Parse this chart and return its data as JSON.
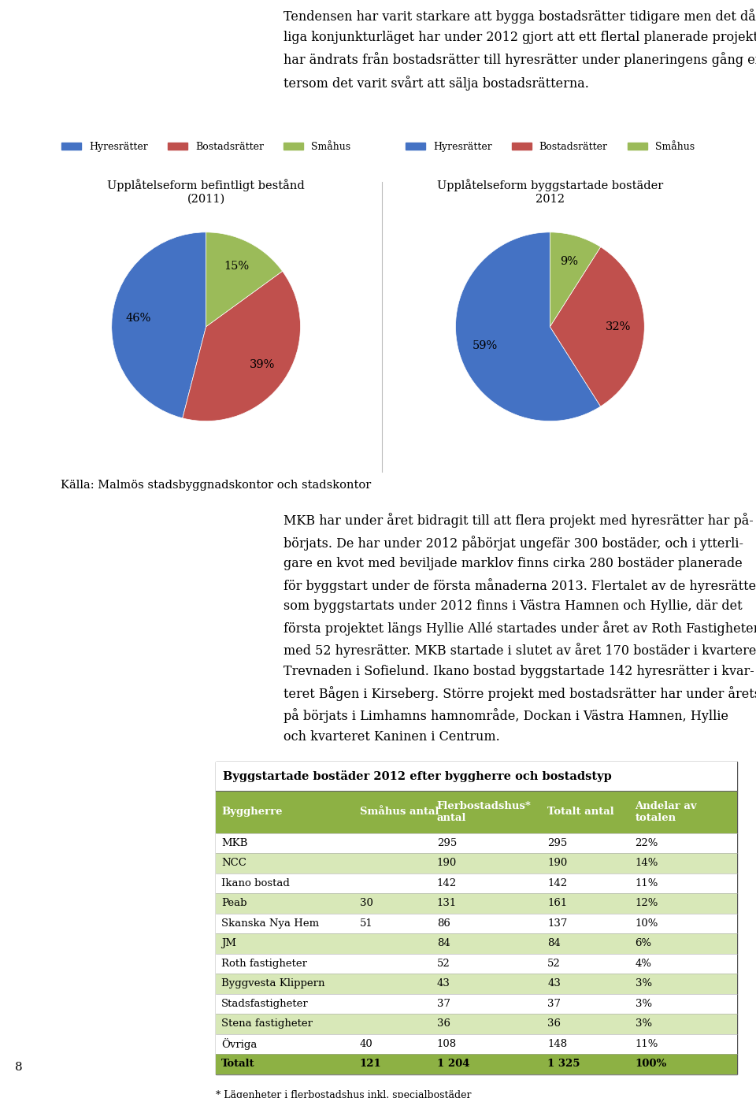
{
  "pie1_title": "Upplåtelseform befintligt bestånd\n(2011)",
  "pie1_values": [
    46,
    39,
    15
  ],
  "pie1_colors": [
    "#4472C4",
    "#C0504D",
    "#9BBB59"
  ],
  "pie1_legend": [
    "Hyresrätter",
    "Bostadsrätter",
    "Småhus"
  ],
  "pie2_title": "Upplåtelseform byggstartade bostäder\n2012",
  "pie2_values": [
    59,
    32,
    9
  ],
  "pie2_colors": [
    "#4472C4",
    "#C0504D",
    "#9BBB59"
  ],
  "pie2_legend": [
    "Hyresrätter",
    "Bostadsrätter",
    "Småhus"
  ],
  "source_text": "Källa: Malmös stadsbyggnadskontor och stadskontor",
  "table_title": "Byggstartade bostäder 2012 efter byggherre och bostadstyp",
  "table_header": [
    "Byggherre",
    "Småhus antal",
    "Flerbostadshus*\nantal",
    "Totalt antal",
    "Andelar av\ntotalen"
  ],
  "table_header_bg": "#8DB144",
  "table_alt_bg": "#D8E8B8",
  "table_rows": [
    [
      "MKB",
      "",
      "295",
      "295",
      "22%"
    ],
    [
      "NCC",
      "",
      "190",
      "190",
      "14%"
    ],
    [
      "Ikano bostad",
      "",
      "142",
      "142",
      "11%"
    ],
    [
      "Peab",
      "30",
      "131",
      "161",
      "12%"
    ],
    [
      "Skanska Nya Hem",
      "51",
      "86",
      "137",
      "10%"
    ],
    [
      "JM",
      "",
      "84",
      "84",
      "6%"
    ],
    [
      "Roth fastigheter",
      "",
      "52",
      "52",
      "4%"
    ],
    [
      "Byggvesta Klippern",
      "",
      "43",
      "43",
      "3%"
    ],
    [
      "Stadsfastigheter",
      "",
      "37",
      "37",
      "3%"
    ],
    [
      "Stena fastigheter",
      "",
      "36",
      "36",
      "3%"
    ],
    [
      "Övriga",
      "40",
      "108",
      "148",
      "11%"
    ],
    [
      "Totalt",
      "121",
      "1 204",
      "1 325",
      "100%"
    ]
  ],
  "table_footer": "* Lägenheter i flerbostadshus inkl. specialbostäder",
  "page_number": "8"
}
